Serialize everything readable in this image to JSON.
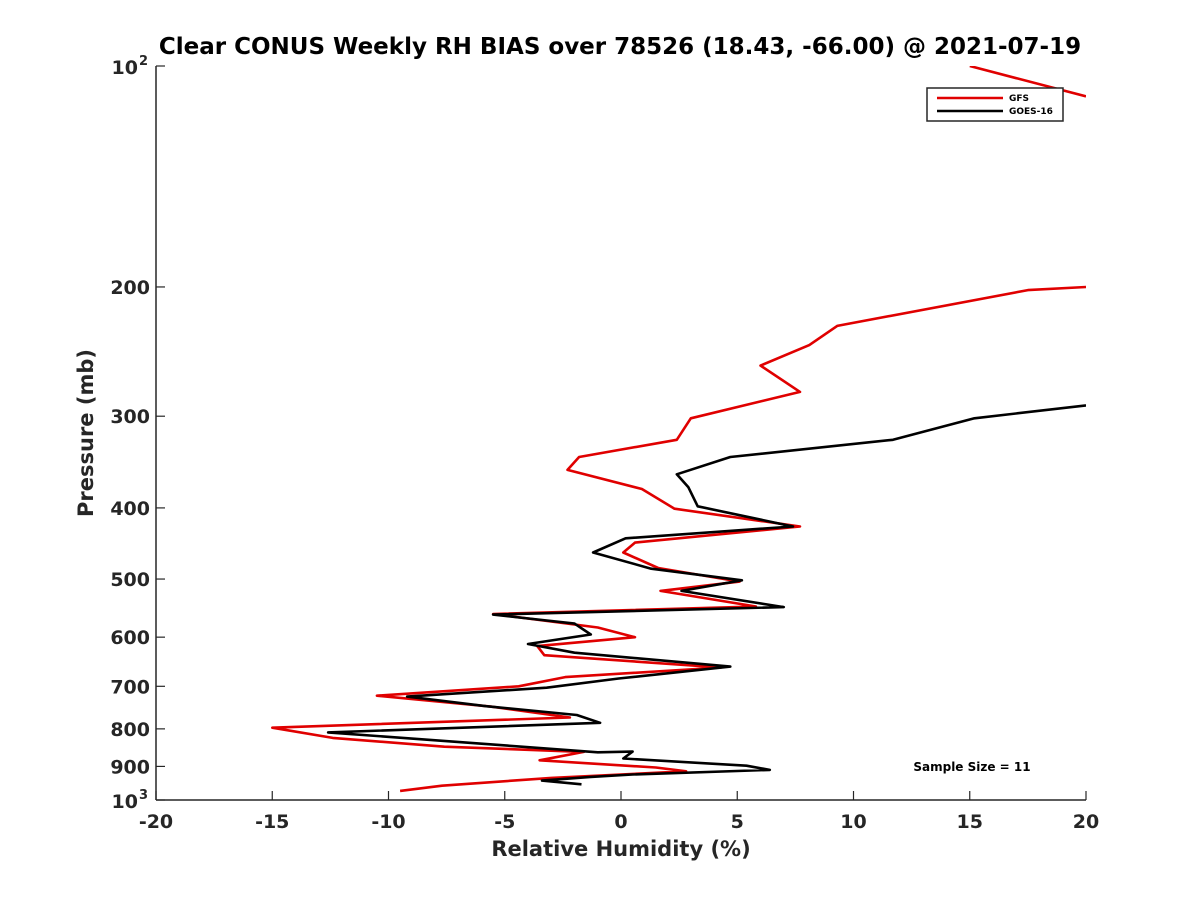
{
  "chart_data": {
    "type": "line",
    "title": "Clear CONUS Weekly RH BIAS over 78526 (18.43, -66.00) @ 2021-07-19",
    "xlabel": "Relative Humidity (%)",
    "ylabel": "Pressure (mb)",
    "xlim": [
      -20,
      20
    ],
    "ylim": [
      100,
      1000
    ],
    "y_scale": "log",
    "y_reversed": true,
    "grid": false,
    "legend_position": "top-right",
    "x_ticks": [
      "-20",
      "-15",
      "-10",
      "-5",
      "0",
      "5",
      "10",
      "15",
      "20"
    ],
    "y_ticks": [
      {
        "value": 100,
        "base": "10",
        "exp": "2"
      },
      {
        "value": 200,
        "label": "200"
      },
      {
        "value": 300,
        "label": "300"
      },
      {
        "value": 400,
        "label": "400"
      },
      {
        "value": 500,
        "label": "500"
      },
      {
        "value": 600,
        "label": "600"
      },
      {
        "value": 700,
        "label": "700"
      },
      {
        "value": 800,
        "label": "800"
      },
      {
        "value": 900,
        "label": "900"
      },
      {
        "value": 1000,
        "base": "10",
        "exp": "3"
      }
    ],
    "series": [
      {
        "name": "GFS",
        "color": "#e00000",
        "points": [
          [
            15.0,
            100
          ],
          [
            20.0,
            110
          ],
          [
            20.0,
            200
          ],
          [
            17.5,
            202
          ],
          [
            9.3,
            226
          ],
          [
            8.1,
            240
          ],
          [
            6.0,
            256
          ],
          [
            7.7,
            278
          ],
          [
            3.0,
            302
          ],
          [
            2.4,
            323
          ],
          [
            -1.8,
            341
          ],
          [
            -2.3,
            355
          ],
          [
            0.9,
            377
          ],
          [
            2.3,
            401
          ],
          [
            7.7,
            424
          ],
          [
            0.6,
            446
          ],
          [
            0.1,
            460
          ],
          [
            1.6,
            483
          ],
          [
            5.1,
            504
          ],
          [
            1.7,
            519
          ],
          [
            5.8,
            545
          ],
          [
            -5.5,
            558
          ],
          [
            -1.0,
            582
          ],
          [
            0.6,
            600
          ],
          [
            -3.6,
            617
          ],
          [
            -3.3,
            635
          ],
          [
            4.3,
            660
          ],
          [
            -2.4,
            680
          ],
          [
            -4.4,
            700
          ],
          [
            -10.5,
            721
          ],
          [
            -5.6,
            746
          ],
          [
            -2.2,
            772
          ],
          [
            -15.0,
            797
          ],
          [
            -12.4,
            823
          ],
          [
            -7.6,
            846
          ],
          [
            -1.6,
            860
          ],
          [
            -3.5,
            883
          ],
          [
            1.5,
            903
          ],
          [
            2.8,
            914
          ],
          [
            -3.0,
            933
          ],
          [
            -7.7,
            956
          ],
          [
            -9.5,
            972
          ]
        ]
      },
      {
        "name": "GOES-16",
        "color": "#000000",
        "points": [
          [
            20.0,
            290
          ],
          [
            15.2,
            302
          ],
          [
            11.7,
            323
          ],
          [
            4.7,
            341
          ],
          [
            2.4,
            360
          ],
          [
            2.9,
            375
          ],
          [
            3.3,
            398
          ],
          [
            7.4,
            424
          ],
          [
            0.2,
            440
          ],
          [
            -1.2,
            460
          ],
          [
            1.3,
            484
          ],
          [
            5.2,
            502
          ],
          [
            2.6,
            519
          ],
          [
            7.0,
            546
          ],
          [
            -5.5,
            559
          ],
          [
            -2.0,
            575
          ],
          [
            -1.3,
            595
          ],
          [
            -4.0,
            613
          ],
          [
            -2.0,
            630
          ],
          [
            4.7,
            658
          ],
          [
            -0.1,
            683
          ],
          [
            -3.2,
            703
          ],
          [
            -9.2,
            723
          ],
          [
            -5.8,
            745
          ],
          [
            -1.9,
            766
          ],
          [
            -0.9,
            785
          ],
          [
            -12.6,
            809
          ],
          [
            -6.0,
            838
          ],
          [
            -1.0,
            861
          ],
          [
            0.5,
            859
          ],
          [
            0.1,
            878
          ],
          [
            5.4,
            898
          ],
          [
            6.4,
            910
          ],
          [
            0.5,
            923
          ],
          [
            -1.3,
            930
          ],
          [
            -3.4,
            941
          ],
          [
            -1.7,
            952
          ]
        ]
      }
    ],
    "annotations": [
      "Sample Size = 11"
    ]
  },
  "legend": {
    "items": [
      {
        "name": "GFS",
        "color": "#e00000"
      },
      {
        "name": "GOES-16",
        "color": "#000000"
      }
    ]
  },
  "sample_size_text": "Sample Size = 11"
}
